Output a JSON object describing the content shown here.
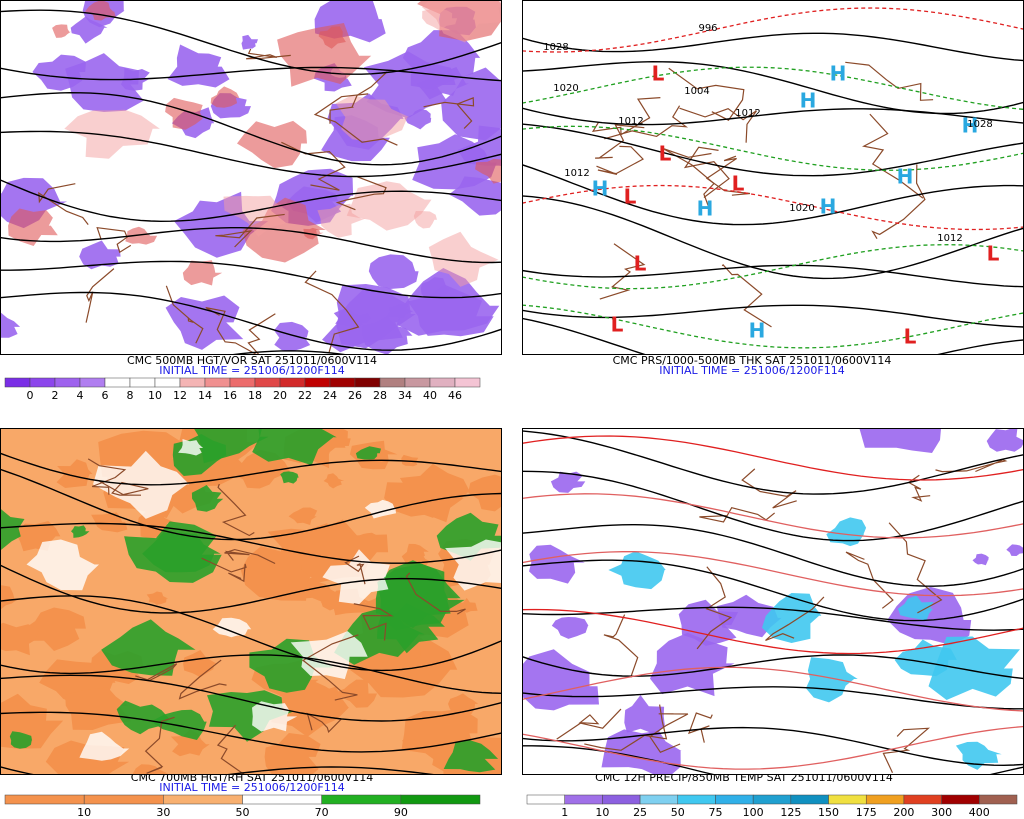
{
  "panels": [
    {
      "caption": "CMC 500MB HGT/VOR SAT 251011/0600V114",
      "initial": "INITIAL TIME = 251006/1200F114",
      "colorbar": {
        "labels": [
          0,
          2,
          4,
          6,
          8,
          10,
          12,
          14,
          16,
          18,
          20,
          22,
          24,
          26,
          28,
          34,
          40,
          46
        ],
        "colors": [
          "#7a2ee6",
          "#8c46ec",
          "#9e62ee",
          "#b07ef0",
          "#ffffff",
          "#ffffff",
          "#ffffff",
          "#f4b4b4",
          "#f09090",
          "#ec6c6c",
          "#e04848",
          "#d22a2a",
          "#c00000",
          "#a00000",
          "#800000",
          "#b08080",
          "#c898a0",
          "#e0b0c0",
          "#f4c4d4"
        ]
      }
    },
    {
      "caption": "CMC PRS/1000-500MB THK SAT 251011/0600V114",
      "initial": "INITIAL TIME = 251006/1200F114",
      "symbols": [
        "L",
        "H",
        "H",
        "H",
        "L",
        "L",
        "H",
        "L",
        "H",
        "H",
        "H",
        "L",
        "L",
        "L",
        "L",
        "H"
      ],
      "isobars": [
        "1028",
        "1020",
        "1012",
        "1012",
        "1004",
        "996",
        "1012",
        "1020",
        "1012",
        "1028"
      ]
    },
    {
      "caption": "CMC 700MB HGT/RH SAT 251011/0600V114",
      "initial": "INITIAL TIME = 251006/1200F114",
      "colorbar": {
        "labels": [
          10,
          30,
          50,
          70,
          90
        ],
        "colors": [
          "#f4924d",
          "#f4924d",
          "#f8b070",
          "#ffffff",
          "#22b022",
          "#119911"
        ]
      }
    },
    {
      "caption": "CMC 12H PRECIP/850MB TEMP SAT 251011/0600V114",
      "colorbar": {
        "labels": [
          1,
          10,
          25,
          50,
          75,
          100,
          125,
          150,
          175,
          200,
          300,
          400
        ],
        "colors": [
          "#ffffff",
          "#a070e8",
          "#8c60e0",
          "#7fd0f0",
          "#40c8f0",
          "#30b0e8",
          "#20a0d0",
          "#1090c0",
          "#f0e040",
          "#f0a020",
          "#e04020",
          "#a00000",
          "#a06050"
        ]
      }
    }
  ]
}
